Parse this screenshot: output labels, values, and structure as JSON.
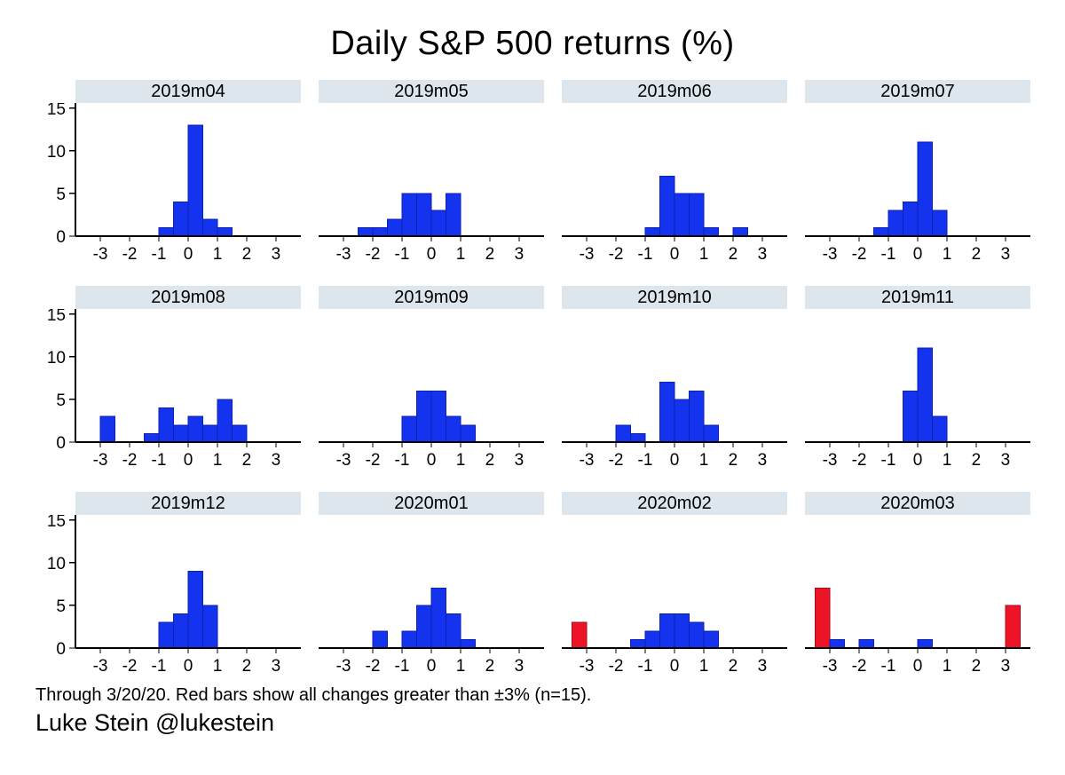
{
  "title": "Daily S&P 500 returns (%)",
  "caption": {
    "note": "Through 3/20/20. Red bars show all changes greater than ±3% (n=15).",
    "credit": "Luke Stein @lukestein"
  },
  "colors": {
    "bar_blue": "#1433ee",
    "bar_blue_stroke": "#0c22ae",
    "bar_red": "#ed1428",
    "bar_red_stroke": "#a60d1c",
    "header_bg": "#dde6ed",
    "axis": "#000000"
  },
  "chart_data": {
    "type": "bar",
    "title": "Daily S&P 500 returns (%)",
    "xlabel": "",
    "ylabel": "",
    "layout": {
      "rows": 3,
      "cols": 4,
      "bin_width": 0.5,
      "xticks": [
        -3,
        -2,
        -1,
        0,
        1,
        2,
        3
      ],
      "yticks": [
        0,
        5,
        10,
        15
      ],
      "xlim": [
        -3.85,
        3.85
      ],
      "ylim": [
        0,
        15.6
      ],
      "grid": false,
      "legend": "none",
      "highlight_rule": "red bars show all changes greater than ±3%"
    },
    "panels": [
      {
        "label": "2019m04",
        "bars": [
          {
            "x0": -1.0,
            "count": 1
          },
          {
            "x0": -0.5,
            "count": 4
          },
          {
            "x0": 0.0,
            "count": 13
          },
          {
            "x0": 0.5,
            "count": 2
          },
          {
            "x0": 1.0,
            "count": 1
          }
        ]
      },
      {
        "label": "2019m05",
        "bars": [
          {
            "x0": -2.5,
            "count": 1
          },
          {
            "x0": -2.0,
            "count": 1
          },
          {
            "x0": -1.5,
            "count": 2
          },
          {
            "x0": -1.0,
            "count": 5
          },
          {
            "x0": -0.5,
            "count": 5
          },
          {
            "x0": 0.0,
            "count": 3
          },
          {
            "x0": 0.5,
            "count": 5
          }
        ]
      },
      {
        "label": "2019m06",
        "bars": [
          {
            "x0": -1.0,
            "count": 1
          },
          {
            "x0": -0.5,
            "count": 7
          },
          {
            "x0": 0.0,
            "count": 5
          },
          {
            "x0": 0.5,
            "count": 5
          },
          {
            "x0": 1.0,
            "count": 1
          },
          {
            "x0": 2.0,
            "count": 1
          }
        ]
      },
      {
        "label": "2019m07",
        "bars": [
          {
            "x0": -1.5,
            "count": 1
          },
          {
            "x0": -1.0,
            "count": 3
          },
          {
            "x0": -0.5,
            "count": 4
          },
          {
            "x0": 0.0,
            "count": 11
          },
          {
            "x0": 0.5,
            "count": 3
          }
        ]
      },
      {
        "label": "2019m08",
        "bars": [
          {
            "x0": -3.0,
            "count": 3
          },
          {
            "x0": -1.5,
            "count": 1
          },
          {
            "x0": -1.0,
            "count": 4
          },
          {
            "x0": -0.5,
            "count": 2
          },
          {
            "x0": 0.0,
            "count": 3
          },
          {
            "x0": 0.5,
            "count": 2
          },
          {
            "x0": 1.0,
            "count": 5
          },
          {
            "x0": 1.5,
            "count": 2
          }
        ]
      },
      {
        "label": "2019m09",
        "bars": [
          {
            "x0": -1.0,
            "count": 3
          },
          {
            "x0": -0.5,
            "count": 6
          },
          {
            "x0": 0.0,
            "count": 6
          },
          {
            "x0": 0.5,
            "count": 3
          },
          {
            "x0": 1.0,
            "count": 2
          }
        ]
      },
      {
        "label": "2019m10",
        "bars": [
          {
            "x0": -2.0,
            "count": 2
          },
          {
            "x0": -1.5,
            "count": 1
          },
          {
            "x0": -0.5,
            "count": 7
          },
          {
            "x0": 0.0,
            "count": 5
          },
          {
            "x0": 0.5,
            "count": 6
          },
          {
            "x0": 1.0,
            "count": 2
          }
        ]
      },
      {
        "label": "2019m11",
        "bars": [
          {
            "x0": -0.5,
            "count": 6
          },
          {
            "x0": 0.0,
            "count": 11
          },
          {
            "x0": 0.5,
            "count": 3
          }
        ]
      },
      {
        "label": "2019m12",
        "bars": [
          {
            "x0": -1.0,
            "count": 3
          },
          {
            "x0": -0.5,
            "count": 4
          },
          {
            "x0": 0.0,
            "count": 9
          },
          {
            "x0": 0.5,
            "count": 5
          }
        ]
      },
      {
        "label": "2020m01",
        "bars": [
          {
            "x0": -2.0,
            "count": 2
          },
          {
            "x0": -1.0,
            "count": 2
          },
          {
            "x0": -0.5,
            "count": 5
          },
          {
            "x0": 0.0,
            "count": 7
          },
          {
            "x0": 0.5,
            "count": 4
          },
          {
            "x0": 1.0,
            "count": 1
          }
        ]
      },
      {
        "label": "2020m02",
        "bars": [
          {
            "x0": -3.5,
            "count": 3,
            "red": true
          },
          {
            "x0": -1.5,
            "count": 1
          },
          {
            "x0": -1.0,
            "count": 2
          },
          {
            "x0": -0.5,
            "count": 4
          },
          {
            "x0": 0.0,
            "count": 4
          },
          {
            "x0": 0.5,
            "count": 3
          },
          {
            "x0": 1.0,
            "count": 2
          }
        ]
      },
      {
        "label": "2020m03",
        "bars": [
          {
            "x0": -3.5,
            "count": 7,
            "red": true
          },
          {
            "x0": -3.0,
            "count": 1
          },
          {
            "x0": -2.0,
            "count": 1
          },
          {
            "x0": 0.0,
            "count": 1
          },
          {
            "x0": 3.0,
            "count": 5,
            "red": true
          }
        ]
      }
    ]
  }
}
